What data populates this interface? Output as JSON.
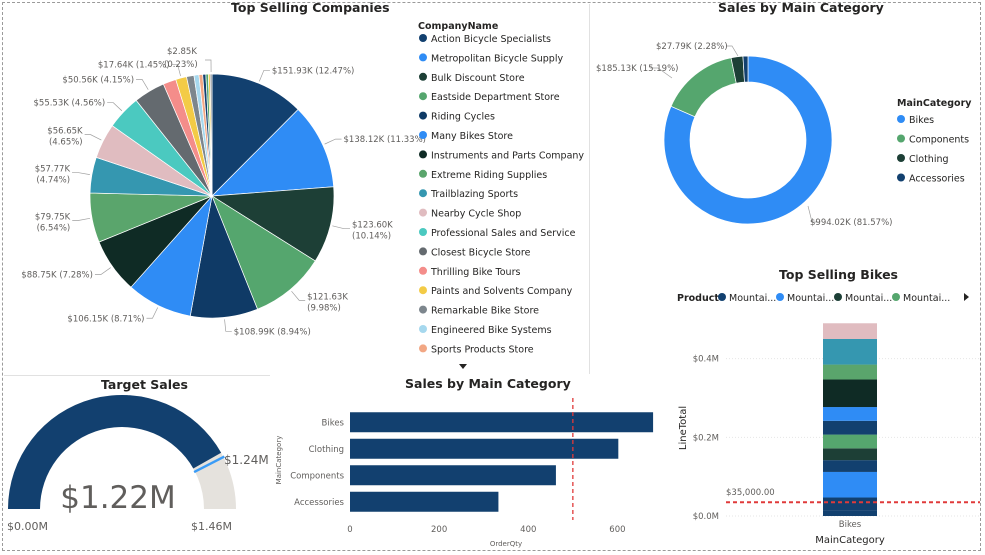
{
  "colors": {
    "navy": "#12406f",
    "blue": "#2f8cf5",
    "darkteal": "#1d3f36",
    "green": "#55a66e",
    "darknavy": "#0f3a66",
    "lightblue": "#3a9cf7",
    "nearblack": "#0f2b25",
    "midgreen": "#5aa56c",
    "teal": "#3597b0",
    "pink": "#e0bcc0",
    "turquoise": "#4bc9c0",
    "grey": "#646a6f",
    "salmon": "#f48d8a",
    "yellow": "#f3cb46",
    "slate": "#7d868d",
    "paleblue": "#a6d8ee",
    "peach": "#f2a784",
    "reddash": "#e03a3a",
    "gaugebg": "#e5e2dd"
  },
  "chart_data": [
    {
      "id": "top-selling-companies",
      "type": "pie",
      "title": "Top Selling Companies",
      "legend_title": "CompanyName",
      "legend_position": "right",
      "slices": [
        {
          "label": "Action Bicycle Specialists",
          "value": 151.93,
          "pct": 12.47,
          "data_label": "$151.93K (12.47%)",
          "color": "#12406f"
        },
        {
          "label": "Metropolitan Bicycle Supply",
          "value": 138.12,
          "pct": 11.33,
          "data_label": "$138.12K (11.33%)",
          "color": "#2f8cf5"
        },
        {
          "label": "Bulk Discount Store",
          "value": 123.6,
          "pct": 10.14,
          "data_label": "$123.60K (10.14%)",
          "color": "#1d3f36"
        },
        {
          "label": "Eastside Department Store",
          "value": 121.63,
          "pct": 9.98,
          "data_label": "$121.63K (9.98%)",
          "color": "#55a66e"
        },
        {
          "label": "Riding Cycles",
          "value": 108.99,
          "pct": 8.94,
          "data_label": "$108.99K (8.94%)",
          "color": "#0f3a66"
        },
        {
          "label": "Many Bikes Store",
          "value": 106.15,
          "pct": 8.71,
          "data_label": "$106.15K (8.71%)",
          "color": "#2f8cf5"
        },
        {
          "label": "Instruments and Parts Company",
          "value": 88.75,
          "pct": 7.28,
          "data_label": "$88.75K (7.28%)",
          "color": "#0f2b25"
        },
        {
          "label": "Extreme Riding Supplies",
          "value": 79.75,
          "pct": 6.54,
          "data_label": "$79.75K (6.54%)",
          "color": "#5aa56c"
        },
        {
          "label": "Trailblazing Sports",
          "value": 57.77,
          "pct": 4.74,
          "data_label": "$57.77K (4.74%)",
          "color": "#3597b0"
        },
        {
          "label": "Nearby Cycle Shop",
          "value": 56.65,
          "pct": 4.65,
          "data_label": "$56.65K (4.65%)",
          "color": "#e0bcc0"
        },
        {
          "label": "Professional Sales and Service",
          "value": 55.53,
          "pct": 4.56,
          "data_label": "$55.53K (4.56%)",
          "color": "#4bc9c0"
        },
        {
          "label": "Closest Bicycle Store",
          "value": 50.56,
          "pct": 4.15,
          "data_label": "$50.56K (4.15%)",
          "color": "#646a6f"
        },
        {
          "label": "Thrilling Bike Tours",
          "value": 21.0,
          "pct": 1.72,
          "data_label": "",
          "color": "#f48d8a"
        },
        {
          "label": "Paints and Solvents Company",
          "value": 17.64,
          "pct": 1.45,
          "data_label": "$17.64K (1.45%)",
          "color": "#f3cb46"
        },
        {
          "label": "Remarkable Bike Store",
          "value": 12.0,
          "pct": 0.98,
          "data_label": "",
          "color": "#7d868d"
        },
        {
          "label": "Engineered Bike Systems",
          "value": 8.0,
          "pct": 0.66,
          "data_label": "",
          "color": "#a6d8ee"
        },
        {
          "label": "Sports Products Store",
          "value": 6.0,
          "pct": 0.49,
          "data_label": "",
          "color": "#f2a784"
        },
        {
          "label": "",
          "value": 5.0,
          "pct": 0.41,
          "data_label": "",
          "color": "#12406f"
        },
        {
          "label": "",
          "value": 4.0,
          "pct": 0.33,
          "data_label": "",
          "color": "#55a66e"
        },
        {
          "label": "",
          "value": 3.0,
          "pct": 0.25,
          "data_label": "",
          "color": "#f3cb46"
        },
        {
          "label": "",
          "value": 2.85,
          "pct": 0.23,
          "data_label": "$2.85K (0.23%)",
          "color": "#7d868d"
        }
      ]
    },
    {
      "id": "sales-by-main-category-donut",
      "type": "pie",
      "title": "Sales by Main Category",
      "legend_title": "MainCategory",
      "legend_position": "right",
      "slices": [
        {
          "label": "Bikes",
          "value": 994.02,
          "pct": 81.57,
          "data_label": "$994.02K (81.57%)",
          "color": "#2f8cf5"
        },
        {
          "label": "Components",
          "value": 185.13,
          "pct": 15.19,
          "data_label": "$185.13K (15.19%)",
          "color": "#55a66e"
        },
        {
          "label": "Clothing",
          "value": 27.79,
          "pct": 2.28,
          "data_label": "$27.79K (2.28%)",
          "color": "#1d3f36"
        },
        {
          "label": "Accessories",
          "value": 11.7,
          "pct": 0.96,
          "data_label": "",
          "color": "#12406f"
        }
      ]
    },
    {
      "id": "target-sales",
      "type": "gauge",
      "title": "Target Sales",
      "value": 1.22,
      "value_label": "$1.22M",
      "min": 0,
      "min_label": "$0.00M",
      "max": 1.46,
      "max_label": "$1.46M",
      "target": 1.24,
      "target_label": "$1.24M"
    },
    {
      "id": "sales-by-main-category-bar",
      "type": "bar",
      "orientation": "horizontal",
      "title": "Sales by Main Category",
      "categories": [
        "Bikes",
        "Clothing",
        "Components",
        "Accessories"
      ],
      "values": [
        680,
        602,
        462,
        333
      ],
      "xlabel": "OrderQty",
      "ylabel": "MainCategory",
      "xlim": [
        0,
        700
      ],
      "xticks": [
        "0",
        "200",
        "400",
        "600"
      ],
      "reference_line": 500,
      "color": "#12406f"
    },
    {
      "id": "top-selling-bikes",
      "type": "bar",
      "stacked": true,
      "title": "Top Selling Bikes",
      "legend_title": "Product",
      "legend_items": [
        {
          "label": "Mountai...",
          "color": "#12406f"
        },
        {
          "label": "Mountai...",
          "color": "#2f8cf5"
        },
        {
          "label": "Mountai...",
          "color": "#1d3f36"
        },
        {
          "label": "Mountai...",
          "color": "#55a66e"
        }
      ],
      "categories": [
        "Bikes"
      ],
      "xlabel": "MainCategory",
      "ylabel": "LineTotal",
      "ylim": [
        0,
        0.45
      ],
      "yticks": [
        "$0.0M",
        "$0.2M",
        "$0.4M"
      ],
      "reference_line": 0.035,
      "reference_label": "$35,000.00",
      "segments": [
        {
          "value": 0.015,
          "color": "#12406f"
        },
        {
          "value": 0.032,
          "color": "#12406f"
        },
        {
          "value": 0.065,
          "color": "#2f8cf5"
        },
        {
          "value": 0.03,
          "color": "#12406f"
        },
        {
          "value": 0.03,
          "color": "#1d3f36"
        },
        {
          "value": 0.035,
          "color": "#55a66e"
        },
        {
          "value": 0.035,
          "color": "#12406f"
        },
        {
          "value": 0.035,
          "color": "#2f8cf5"
        },
        {
          "value": 0.07,
          "color": "#0f2b25"
        },
        {
          "value": 0.038,
          "color": "#5aa56c"
        },
        {
          "value": 0.065,
          "color": "#3597b0"
        },
        {
          "value": 0.04,
          "color": "#e0bcc0"
        }
      ]
    }
  ]
}
